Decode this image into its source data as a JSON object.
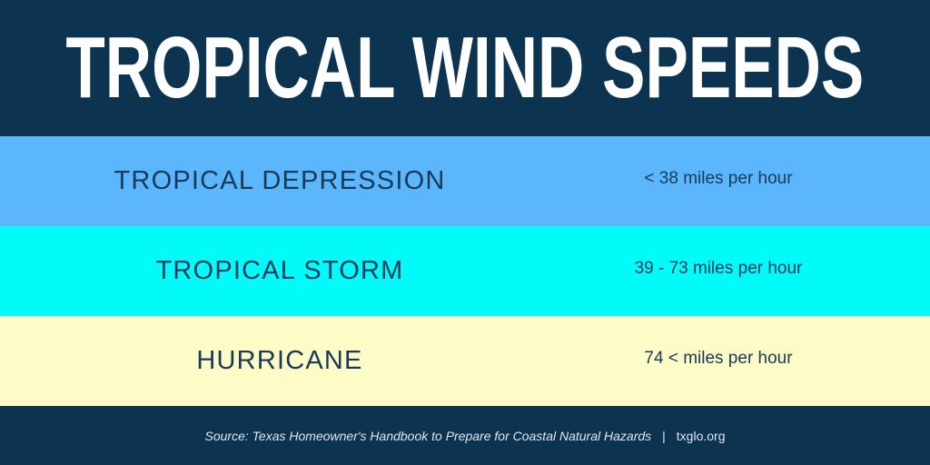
{
  "header": {
    "title": "TROPICAL WIND SPEEDS"
  },
  "rows": [
    {
      "category": "TROPICAL DEPRESSION",
      "speed": "< 38 miles per hour",
      "color": "#5cb6fb"
    },
    {
      "category": "TROPICAL STORM",
      "speed": "39 - 73 miles per hour",
      "color": "#00fbf9"
    },
    {
      "category": "HURRICANE",
      "speed": "74 < miles per hour",
      "color": "#fdfbc6"
    }
  ],
  "footer": {
    "source": "Source: Texas Homeowner's Handbook to Prepare for Coastal Natural Hazards",
    "separator": "|",
    "site": "txglo.org"
  },
  "colors": {
    "background": "#0c3350",
    "text_dark": "#163a58",
    "text_light": "#ffffff"
  }
}
